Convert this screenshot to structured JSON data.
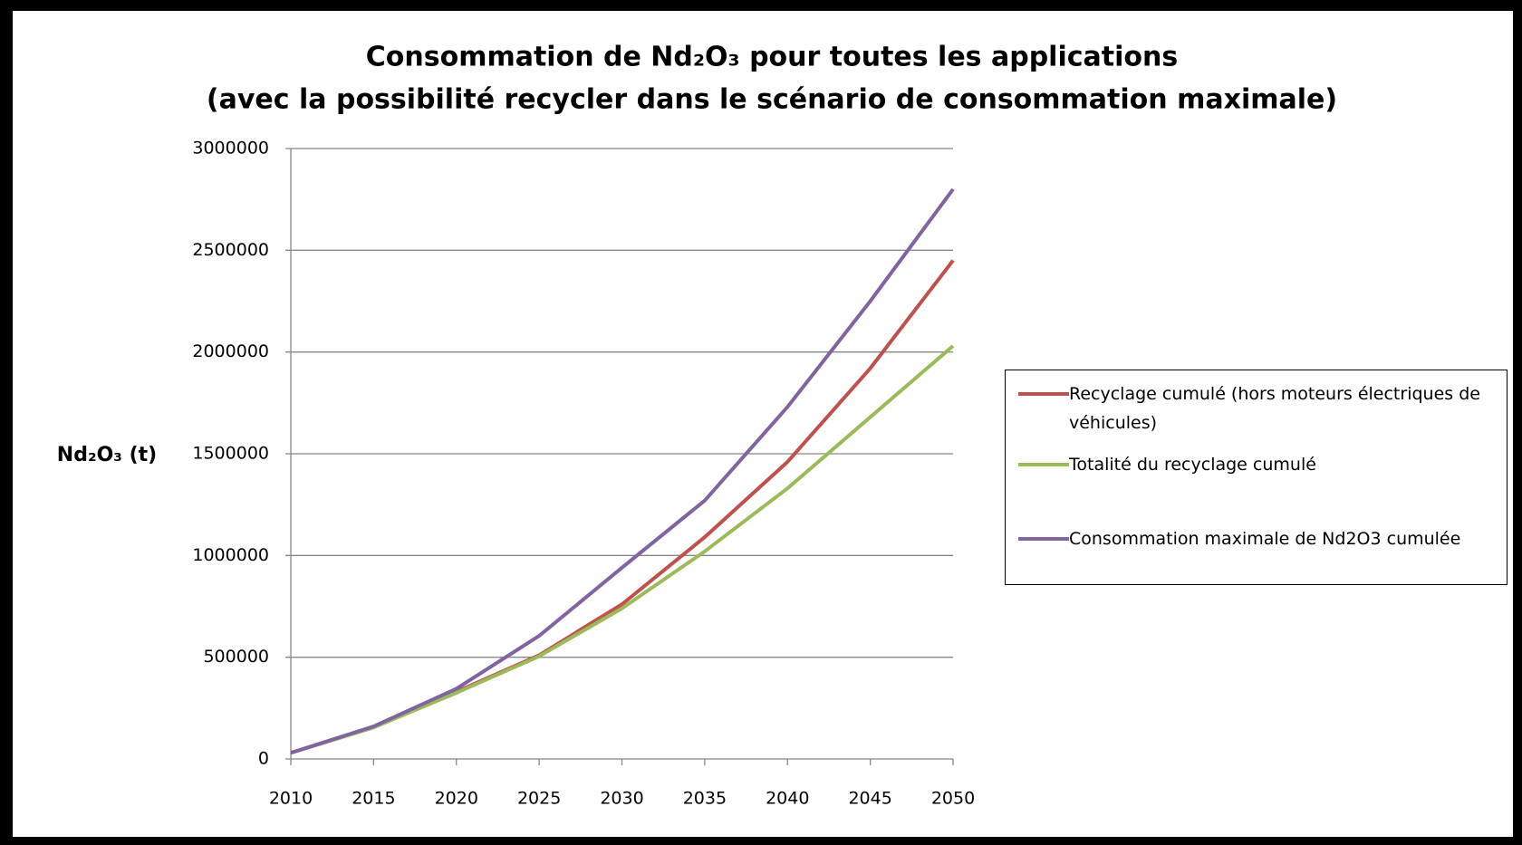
{
  "chart_data": {
    "type": "line",
    "title": [
      "Consommation de Nd₂O₃ pour toutes les applications",
      "(avec la possibilité recycler dans le scénario de consommation maximale)"
    ],
    "y_label": "Nd₂O₃ (t)",
    "x": [
      2010,
      2015,
      2020,
      2025,
      2030,
      2035,
      2040,
      2045,
      2050
    ],
    "series": [
      {
        "name": "Recyclage cumulé (hors moteurs électriques de véhicules)",
        "color": "#c0504d",
        "values": [
          30000,
          155000,
          330000,
          510000,
          760000,
          1090000,
          1460000,
          1920000,
          2450000
        ]
      },
      {
        "name": "Totalité du recyclage cumulé",
        "color": "#9bbb59",
        "values": [
          30000,
          155000,
          325000,
          505000,
          740000,
          1020000,
          1330000,
          1680000,
          2030000
        ]
      },
      {
        "name": "Consommation maximale de Nd2O3 cumulée",
        "color": "#8064a2",
        "values": [
          30000,
          160000,
          345000,
          605000,
          940000,
          1270000,
          1730000,
          2250000,
          2800000
        ]
      }
    ],
    "xlim": [
      2010,
      2050
    ],
    "xticks": [
      2010,
      2015,
      2020,
      2025,
      2030,
      2035,
      2040,
      2045,
      2050
    ],
    "ylim": [
      0,
      3000000
    ],
    "yticks": [
      0,
      500000,
      1000000,
      1500000,
      2000000,
      2500000,
      3000000
    ],
    "grid": true,
    "legend": "right"
  }
}
